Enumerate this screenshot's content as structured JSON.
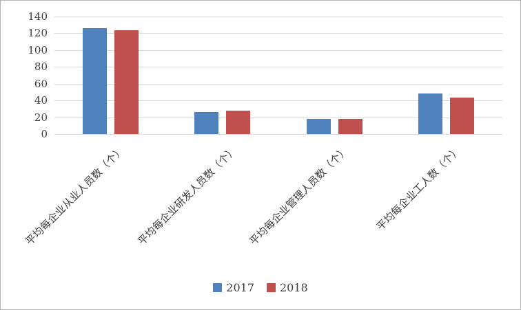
{
  "chart_data": {
    "type": "bar",
    "title": "",
    "categories": [
      "平均每企业从业人员数（个）",
      "平均每企业研发人员数（个）",
      "平均每企业管理人员数（个）",
      "平均每企业工人数（个）"
    ],
    "series": [
      {
        "name": "2017",
        "color": "#4F81BD",
        "values": [
          126,
          26,
          18,
          48
        ]
      },
      {
        "name": "2018",
        "color": "#C0504D",
        "values": [
          124,
          28,
          18,
          43
        ]
      }
    ],
    "xlabel": "",
    "ylabel": "",
    "ylim": [
      0,
      140
    ],
    "yticks": [
      0,
      20,
      40,
      60,
      80,
      100,
      120,
      140
    ],
    "grid": true,
    "gridline_color": "#d9d9d9",
    "text_color": "#404040",
    "legend_position": "bottom"
  }
}
